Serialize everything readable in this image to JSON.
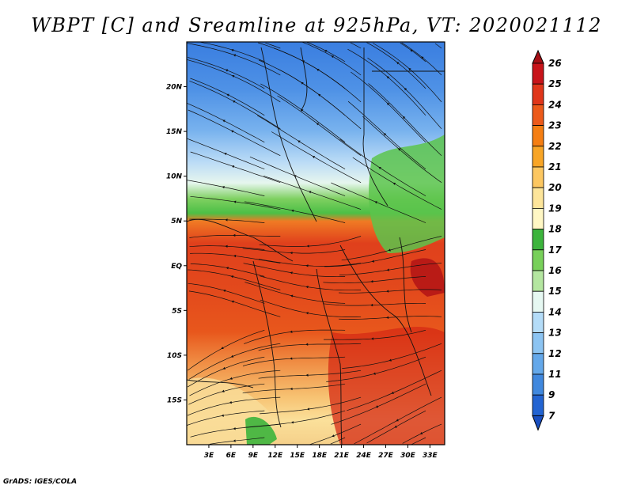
{
  "title": "WBPT [C] and Sreamline at 925hPa, VT: 2020021112",
  "credit": "GrADS: IGES/COLA",
  "map": {
    "lon_range": [
      0,
      35
    ],
    "lat_range": [
      -20,
      25
    ],
    "lat_ticks": [
      {
        "value": 20,
        "label": "20N"
      },
      {
        "value": 15,
        "label": "15N"
      },
      {
        "value": 10,
        "label": "10N"
      },
      {
        "value": 5,
        "label": "5N"
      },
      {
        "value": 0,
        "label": "EQ"
      },
      {
        "value": -5,
        "label": "5S"
      },
      {
        "value": -10,
        "label": "10S"
      },
      {
        "value": -15,
        "label": "15S"
      }
    ],
    "lon_ticks": [
      {
        "value": 3,
        "label": "3E"
      },
      {
        "value": 6,
        "label": "6E"
      },
      {
        "value": 9,
        "label": "9E"
      },
      {
        "value": 12,
        "label": "12E"
      },
      {
        "value": 15,
        "label": "15E"
      },
      {
        "value": 18,
        "label": "18E"
      },
      {
        "value": 21,
        "label": "21E"
      },
      {
        "value": 24,
        "label": "24E"
      },
      {
        "value": 27,
        "label": "27E"
      },
      {
        "value": 30,
        "label": "30E"
      },
      {
        "value": 33,
        "label": "33E"
      }
    ]
  },
  "colorbar": {
    "labels": [
      "26",
      "25",
      "24",
      "23",
      "22",
      "21",
      "20",
      "19",
      "18",
      "17",
      "16",
      "15",
      "14",
      "13",
      "12",
      "11",
      "9",
      "7"
    ],
    "colors": [
      "#a50f15",
      "#c8141a",
      "#e0361a",
      "#ec5a1a",
      "#f57e12",
      "#f8a526",
      "#fcc761",
      "#fde59a",
      "#fff7c4",
      "#3cb43c",
      "#78d05a",
      "#b4e6a0",
      "#e6f8f2",
      "#b4dcf8",
      "#8cc4f2",
      "#64a8ea",
      "#4088de",
      "#2364d2",
      "#1a4fc0"
    ]
  }
}
